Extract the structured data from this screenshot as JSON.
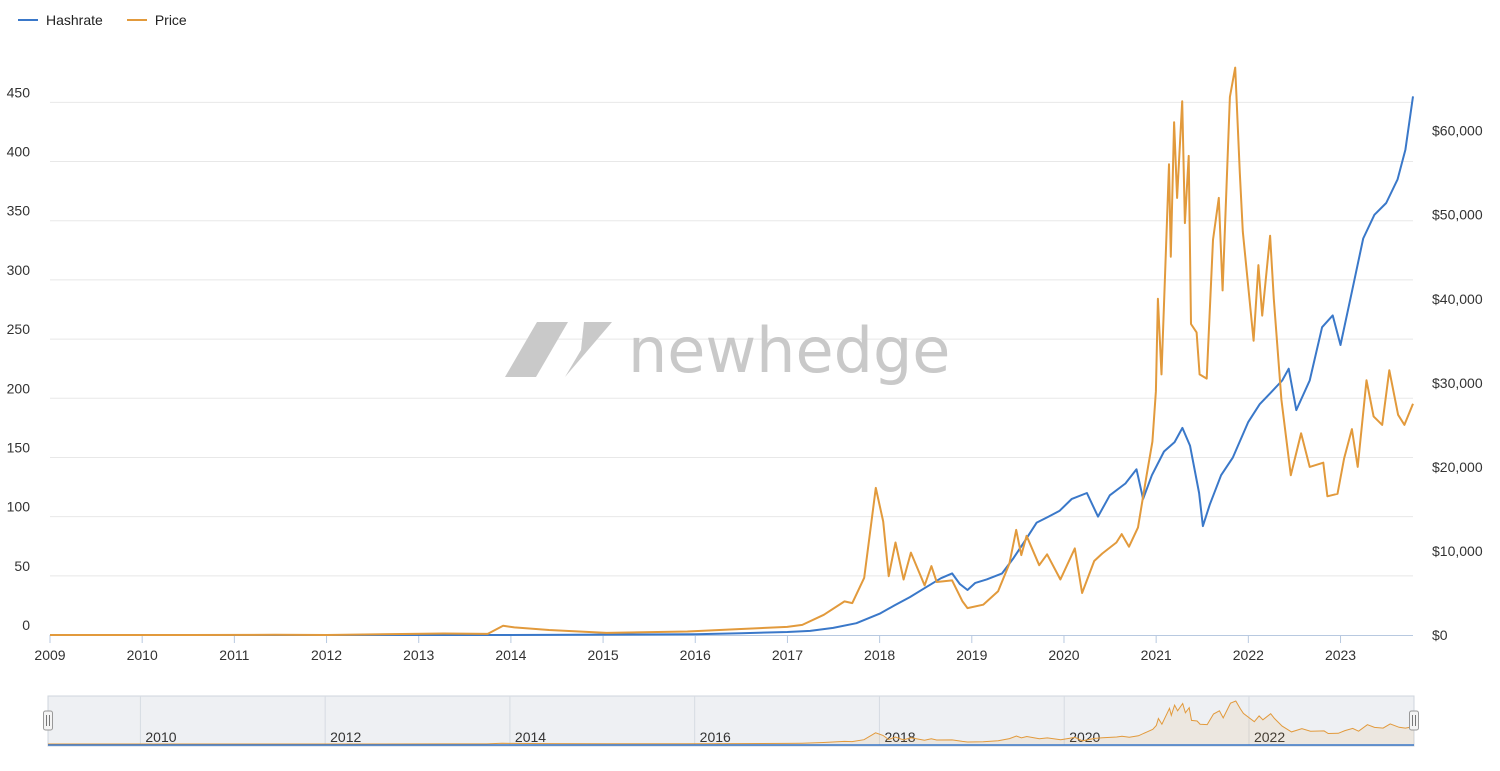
{
  "legend": [
    {
      "name": "Hashrate",
      "color": "#3a78c9"
    },
    {
      "name": "Price",
      "color": "#e29a3c"
    }
  ],
  "watermark": {
    "text": "newhedge"
  },
  "chart_data": {
    "type": "line",
    "x_ticks": [
      "2009",
      "2010",
      "2011",
      "2012",
      "2013",
      "2014",
      "2015",
      "2016",
      "2017",
      "2018",
      "2019",
      "2020",
      "2021",
      "2022",
      "2023"
    ],
    "y_left": {
      "ticks": [
        "0",
        "50",
        "100",
        "150",
        "200",
        "250",
        "300",
        "350",
        "400",
        "450"
      ],
      "range": [
        0,
        490
      ]
    },
    "y_right": {
      "ticks": [
        "$0",
        "$10,000",
        "$20,000",
        "$30,000",
        "$40,000",
        "$50,000",
        "$60,000"
      ],
      "range": [
        0,
        69000
      ]
    },
    "x_range": [
      "2009-01-01",
      "2023-10-15"
    ],
    "grid": true,
    "legend_position": "top-left",
    "series": [
      {
        "name": "Hashrate",
        "axis": "left",
        "color": "#3a78c9",
        "points": [
          [
            "2009-01-01",
            0
          ],
          [
            "2014-01-01",
            0.01
          ],
          [
            "2015-01-01",
            0.3
          ],
          [
            "2016-01-01",
            0.7
          ],
          [
            "2016-07-01",
            1.5
          ],
          [
            "2017-01-01",
            2.5
          ],
          [
            "2017-04-01",
            3.5
          ],
          [
            "2017-07-01",
            6
          ],
          [
            "2017-10-01",
            10
          ],
          [
            "2018-01-01",
            18
          ],
          [
            "2018-03-01",
            25
          ],
          [
            "2018-05-01",
            32
          ],
          [
            "2018-07-01",
            40
          ],
          [
            "2018-09-01",
            48
          ],
          [
            "2018-10-15",
            52
          ],
          [
            "2018-11-15",
            43
          ],
          [
            "2018-12-15",
            38
          ],
          [
            "2019-01-15",
            44
          ],
          [
            "2019-03-01",
            47
          ],
          [
            "2019-05-01",
            52
          ],
          [
            "2019-06-15",
            65
          ],
          [
            "2019-08-01",
            80
          ],
          [
            "2019-09-15",
            95
          ],
          [
            "2019-11-01",
            100
          ],
          [
            "2019-12-15",
            105
          ],
          [
            "2020-02-01",
            115
          ],
          [
            "2020-04-01",
            120
          ],
          [
            "2020-05-15",
            100
          ],
          [
            "2020-07-01",
            118
          ],
          [
            "2020-09-01",
            128
          ],
          [
            "2020-10-15",
            140
          ],
          [
            "2020-11-10",
            115
          ],
          [
            "2020-12-15",
            135
          ],
          [
            "2021-02-01",
            155
          ],
          [
            "2021-03-15",
            163
          ],
          [
            "2021-04-15",
            175
          ],
          [
            "2021-05-15",
            160
          ],
          [
            "2021-06-20",
            120
          ],
          [
            "2021-07-05",
            92
          ],
          [
            "2021-08-01",
            110
          ],
          [
            "2021-09-15",
            135
          ],
          [
            "2021-11-01",
            150
          ],
          [
            "2022-01-01",
            180
          ],
          [
            "2022-02-15",
            195
          ],
          [
            "2022-04-01",
            205
          ],
          [
            "2022-05-15",
            215
          ],
          [
            "2022-06-10",
            225
          ],
          [
            "2022-07-10",
            190
          ],
          [
            "2022-09-01",
            215
          ],
          [
            "2022-10-20",
            260
          ],
          [
            "2022-12-01",
            270
          ],
          [
            "2023-01-01",
            245
          ],
          [
            "2023-02-15",
            290
          ],
          [
            "2023-04-01",
            335
          ],
          [
            "2023-05-15",
            355
          ],
          [
            "2023-07-01",
            365
          ],
          [
            "2023-08-15",
            385
          ],
          [
            "2023-09-15",
            410
          ],
          [
            "2023-10-15",
            455
          ]
        ]
      },
      {
        "name": "Price",
        "axis": "right",
        "color": "#e29a3c",
        "points": [
          [
            "2009-01-01",
            0
          ],
          [
            "2010-07-15",
            0
          ],
          [
            "2011-06-10",
            25
          ],
          [
            "2012-01-01",
            5
          ],
          [
            "2013-04-10",
            180
          ],
          [
            "2013-10-01",
            130
          ],
          [
            "2013-12-01",
            1100
          ],
          [
            "2014-01-15",
            900
          ],
          [
            "2014-06-01",
            600
          ],
          [
            "2015-01-15",
            250
          ],
          [
            "2015-12-01",
            420
          ],
          [
            "2016-06-20",
            700
          ],
          [
            "2016-12-31",
            960
          ],
          [
            "2017-03-01",
            1200
          ],
          [
            "2017-05-25",
            2400
          ],
          [
            "2017-08-15",
            4000
          ],
          [
            "2017-09-15",
            3800
          ],
          [
            "2017-11-01",
            6800
          ],
          [
            "2017-12-17",
            17500
          ],
          [
            "2018-01-15",
            13500
          ],
          [
            "2018-02-06",
            7000
          ],
          [
            "2018-03-05",
            11000
          ],
          [
            "2018-04-06",
            6600
          ],
          [
            "2018-05-05",
            9800
          ],
          [
            "2018-06-28",
            5900
          ],
          [
            "2018-07-25",
            8200
          ],
          [
            "2018-08-15",
            6300
          ],
          [
            "2018-10-15",
            6500
          ],
          [
            "2018-11-25",
            4000
          ],
          [
            "2018-12-15",
            3200
          ],
          [
            "2019-02-15",
            3600
          ],
          [
            "2019-04-15",
            5200
          ],
          [
            "2019-05-30",
            8500
          ],
          [
            "2019-06-26",
            12500
          ],
          [
            "2019-07-16",
            9500
          ],
          [
            "2019-08-06",
            11800
          ],
          [
            "2019-09-25",
            8300
          ],
          [
            "2019-10-26",
            9600
          ],
          [
            "2019-12-18",
            6600
          ],
          [
            "2020-02-13",
            10300
          ],
          [
            "2020-03-13",
            5000
          ],
          [
            "2020-04-30",
            8800
          ],
          [
            "2020-06-01",
            9700
          ],
          [
            "2020-07-27",
            11000
          ],
          [
            "2020-08-17",
            12000
          ],
          [
            "2020-09-15",
            10500
          ],
          [
            "2020-10-21",
            12800
          ],
          [
            "2020-11-24",
            19000
          ],
          [
            "2020-12-17",
            23000
          ],
          [
            "2020-12-31",
            29000
          ],
          [
            "2021-01-08",
            40000
          ],
          [
            "2021-01-22",
            31000
          ],
          [
            "2021-02-21",
            56000
          ],
          [
            "2021-02-28",
            45000
          ],
          [
            "2021-03-13",
            61000
          ],
          [
            "2021-03-25",
            52000
          ],
          [
            "2021-04-14",
            63500
          ],
          [
            "2021-04-25",
            49000
          ],
          [
            "2021-05-10",
            57000
          ],
          [
            "2021-05-19",
            37000
          ],
          [
            "2021-06-10",
            36000
          ],
          [
            "2021-06-22",
            31000
          ],
          [
            "2021-07-20",
            30500
          ],
          [
            "2021-08-14",
            47000
          ],
          [
            "2021-09-06",
            52000
          ],
          [
            "2021-09-21",
            41000
          ],
          [
            "2021-10-20",
            64000
          ],
          [
            "2021-11-10",
            67500
          ],
          [
            "2021-11-28",
            55000
          ],
          [
            "2021-12-10",
            48000
          ],
          [
            "2022-01-22",
            35000
          ],
          [
            "2022-02-10",
            44000
          ],
          [
            "2022-02-25",
            38000
          ],
          [
            "2022-03-28",
            47500
          ],
          [
            "2022-04-12",
            40000
          ],
          [
            "2022-05-12",
            28000
          ],
          [
            "2022-06-18",
            19000
          ],
          [
            "2022-07-29",
            24000
          ],
          [
            "2022-09-01",
            20000
          ],
          [
            "2022-10-25",
            20500
          ],
          [
            "2022-11-10",
            16500
          ],
          [
            "2022-12-20",
            16800
          ],
          [
            "2023-01-15",
            21000
          ],
          [
            "2023-02-15",
            24500
          ],
          [
            "2023-03-10",
            20000
          ],
          [
            "2023-04-14",
            30300
          ],
          [
            "2023-05-12",
            26000
          ],
          [
            "2023-06-15",
            25000
          ],
          [
            "2023-07-13",
            31500
          ],
          [
            "2023-08-17",
            26200
          ],
          [
            "2023-09-11",
            25000
          ],
          [
            "2023-10-15",
            27500
          ]
        ]
      }
    ]
  },
  "navigator": {
    "labels": [
      "2010",
      "2012",
      "2014",
      "2016",
      "2018",
      "2020",
      "2022"
    ],
    "left_handle": "left-handle",
    "right_handle": "right-handle"
  }
}
